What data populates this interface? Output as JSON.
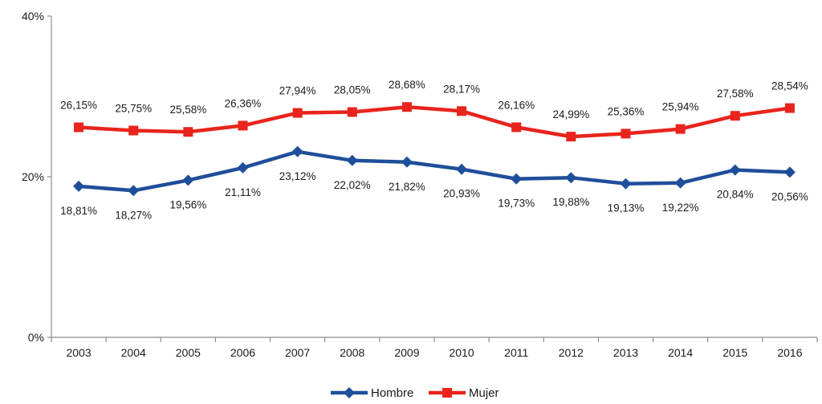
{
  "chart_data": {
    "type": "line",
    "title": "",
    "xlabel": "",
    "ylabel": "",
    "categories": [
      "2003",
      "2004",
      "2005",
      "2006",
      "2007",
      "2008",
      "2009",
      "2010",
      "2011",
      "2012",
      "2013",
      "2014",
      "2015",
      "2016"
    ],
    "ylim": [
      0,
      40
    ],
    "yticks": [
      0,
      20,
      40
    ],
    "ytick_labels": [
      "0%",
      "20%",
      "40%"
    ],
    "grid": false,
    "legend_position": "bottom-center",
    "series": [
      {
        "name": "Hombre",
        "color": "#1f4e9a",
        "marker": "diamond",
        "values": [
          18.81,
          18.27,
          19.56,
          21.11,
          23.12,
          22.02,
          21.82,
          20.93,
          19.73,
          19.88,
          19.13,
          19.22,
          20.84,
          20.56
        ],
        "labels": [
          "18,81%",
          "18,27%",
          "19,56%",
          "21,11%",
          "23,12%",
          "22,02%",
          "21,82%",
          "20,93%",
          "19,73%",
          "19,88%",
          "19,13%",
          "19,22%",
          "20,84%",
          "20,56%"
        ]
      },
      {
        "name": "Mujer",
        "color": "#e8241c",
        "marker": "square",
        "values": [
          26.15,
          25.75,
          25.58,
          26.36,
          27.94,
          28.05,
          28.68,
          28.17,
          26.16,
          24.99,
          25.36,
          25.94,
          27.58,
          28.54
        ],
        "labels": [
          "26,15%",
          "25,75%",
          "25,58%",
          "26,36%",
          "27,94%",
          "28,05%",
          "28,68%",
          "28,17%",
          "26,16%",
          "24,99%",
          "25,36%",
          "25,94%",
          "27,58%",
          "28,54%"
        ]
      }
    ]
  }
}
